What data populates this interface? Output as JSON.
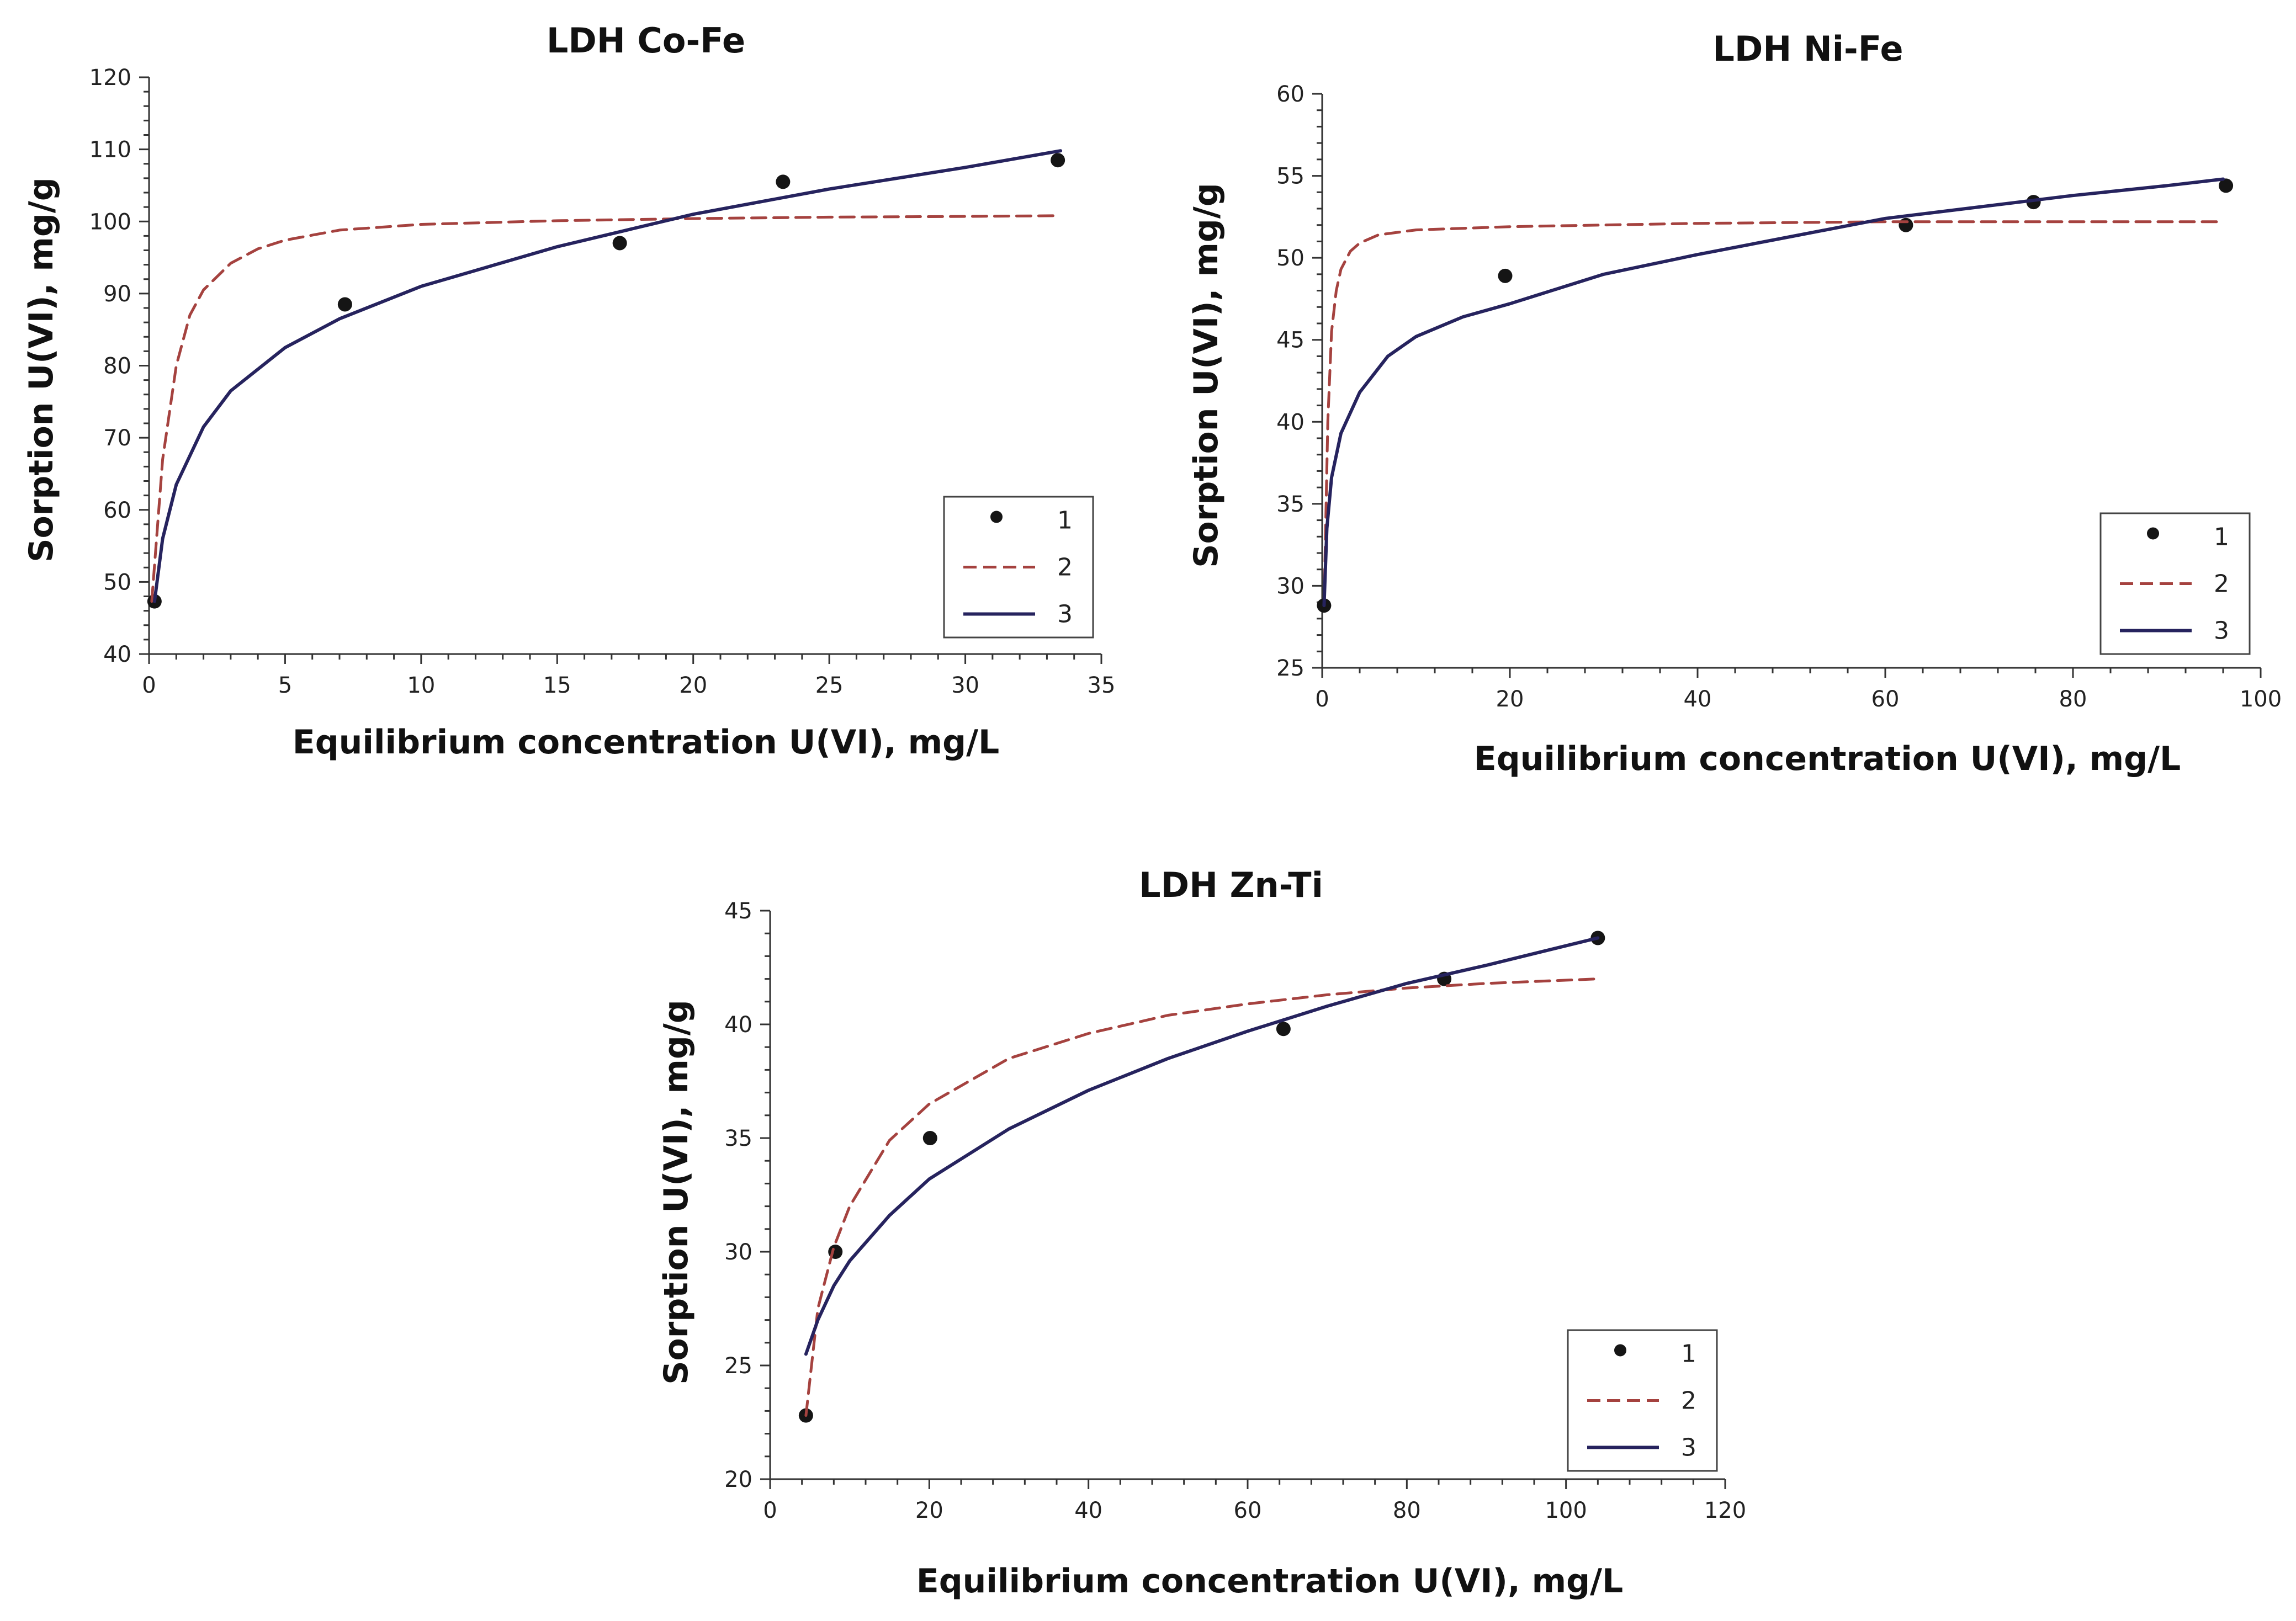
{
  "colors": {
    "points": "#151515",
    "langmuir": "#a5423f",
    "freundlich": "#26235e",
    "axis": "#333333"
  },
  "chart_data": [
    {
      "type": "scatter",
      "title": "LDH Co-Fe",
      "xlabel": "Equilibrium concentration U(VI), mg/L",
      "ylabel": "Sorption U(VI), mg/g",
      "xlim": [
        0,
        35
      ],
      "ylim": [
        40,
        120
      ],
      "xticks": [
        "0",
        "5",
        "10",
        "15",
        "20",
        "25",
        "30",
        "35"
      ],
      "yticks": [
        "40",
        "50",
        "60",
        "70",
        "80",
        "90",
        "100",
        "110",
        "120"
      ],
      "legend": [
        "1",
        "2",
        "3"
      ],
      "legend_position": "bottom-right",
      "series": [
        {
          "name": "1",
          "kind": "points",
          "x": [
            0.2,
            7.2,
            17.3,
            23.3,
            33.4
          ],
          "y": [
            47.3,
            88.5,
            97.0,
            105.5,
            108.5
          ]
        },
        {
          "name": "2",
          "kind": "langmuir-dashed",
          "x": [
            0.1,
            0.5,
            1,
            1.5,
            2,
            3,
            4,
            5,
            7,
            10,
            15,
            20,
            25,
            30,
            33.5
          ],
          "y": [
            47.3,
            67,
            80,
            87,
            90.5,
            94.2,
            96.2,
            97.4,
            98.8,
            99.6,
            100.1,
            100.4,
            100.6,
            100.7,
            100.8
          ]
        },
        {
          "name": "3",
          "kind": "freundlich-solid",
          "x": [
            0.2,
            0.5,
            1,
            2,
            3,
            5,
            7,
            10,
            15,
            20,
            25,
            30,
            33.5
          ],
          "y": [
            47.3,
            56,
            63.5,
            71.5,
            76.5,
            82.5,
            86.5,
            91,
            96.5,
            101,
            104.5,
            107.5,
            109.8
          ]
        }
      ]
    },
    {
      "type": "scatter",
      "title": "LDH Ni-Fe",
      "xlabel": "Equilibrium concentration U(VI), mg/L",
      "ylabel": "Sorption U(VI), mg/g",
      "xlim": [
        0,
        100
      ],
      "ylim": [
        25,
        60
      ],
      "xticks": [
        "0",
        "20",
        "40",
        "60",
        "80",
        "100"
      ],
      "yticks": [
        "25",
        "30",
        "35",
        "40",
        "45",
        "50",
        "55",
        "60"
      ],
      "legend": [
        "1",
        "2",
        "3"
      ],
      "legend_position": "bottom-right",
      "series": [
        {
          "name": "1",
          "kind": "points",
          "x": [
            0.2,
            19.5,
            62.2,
            75.8,
            96.3
          ],
          "y": [
            28.8,
            48.9,
            52.0,
            53.4,
            54.4
          ]
        },
        {
          "name": "2",
          "kind": "langmuir-dashed",
          "x": [
            0.2,
            0.6,
            1,
            1.5,
            2,
            3,
            4,
            6,
            10,
            20,
            40,
            60,
            80,
            96
          ],
          "y": [
            28.8,
            40,
            45.5,
            48,
            49.3,
            50.4,
            50.9,
            51.4,
            51.7,
            51.9,
            52.1,
            52.2,
            52.2,
            52.2
          ]
        },
        {
          "name": "3",
          "kind": "freundlich-solid",
          "x": [
            0.2,
            0.5,
            1,
            2,
            4,
            7,
            10,
            15,
            20,
            30,
            40,
            50,
            60,
            70,
            80,
            90,
            96
          ],
          "y": [
            28.8,
            33.5,
            36.6,
            39.3,
            41.8,
            44,
            45.2,
            46.4,
            47.2,
            49,
            50.2,
            51.3,
            52.4,
            53.1,
            53.8,
            54.4,
            54.8
          ]
        }
      ]
    },
    {
      "type": "scatter",
      "title": "LDH Zn-Ti",
      "xlabel": "Equilibrium concentration U(VI), mg/L",
      "ylabel": "Sorption U(VI), mg/g",
      "xlim": [
        0,
        120
      ],
      "ylim": [
        20,
        45
      ],
      "xticks": [
        "0",
        "20",
        "40",
        "60",
        "80",
        "100",
        "120"
      ],
      "yticks": [
        "20",
        "25",
        "30",
        "35",
        "40",
        "45"
      ],
      "legend": [
        "1",
        "2",
        "3"
      ],
      "legend_position": "bottom-right",
      "series": [
        {
          "name": "1",
          "kind": "points",
          "x": [
            4.5,
            8.2,
            20.1,
            64.5,
            84.7,
            104.0
          ],
          "y": [
            22.8,
            30.0,
            35.0,
            39.8,
            42.0,
            43.8
          ]
        },
        {
          "name": "2",
          "kind": "langmuir-dashed",
          "x": [
            4.5,
            6,
            8,
            10,
            15,
            20,
            30,
            40,
            50,
            60,
            70,
            80,
            90,
            104
          ],
          "y": [
            22.8,
            27.5,
            30.2,
            32,
            34.9,
            36.5,
            38.5,
            39.6,
            40.4,
            40.9,
            41.3,
            41.6,
            41.8,
            42.0
          ]
        },
        {
          "name": "3",
          "kind": "freundlich-solid",
          "x": [
            4.5,
            6,
            8,
            10,
            15,
            20,
            30,
            40,
            50,
            60,
            70,
            80,
            90,
            104
          ],
          "y": [
            25.5,
            27,
            28.5,
            29.6,
            31.6,
            33.2,
            35.4,
            37.1,
            38.5,
            39.7,
            40.8,
            41.8,
            42.6,
            43.8
          ]
        }
      ]
    }
  ]
}
